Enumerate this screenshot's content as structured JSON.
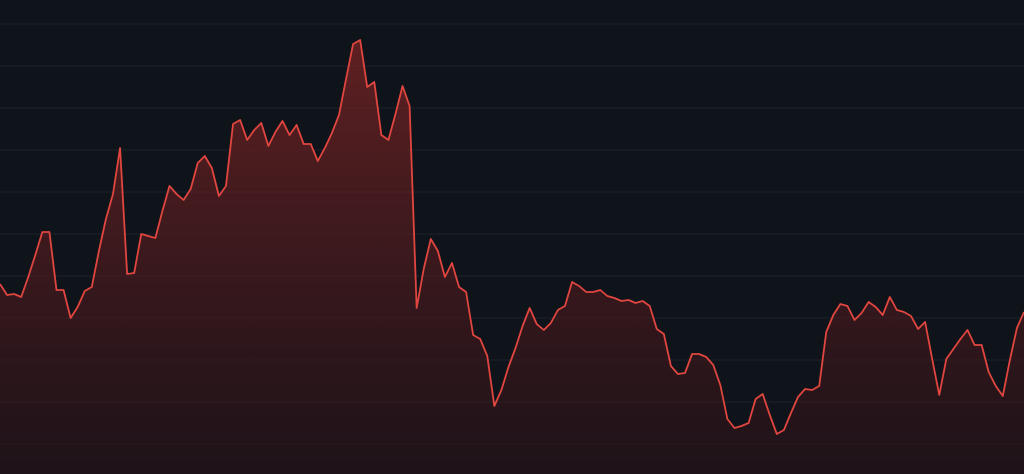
{
  "chart_data": {
    "type": "area",
    "title": "",
    "xlabel": "",
    "ylabel": "",
    "grid": true,
    "legend": "none",
    "ylim": [
      0,
      474
    ],
    "x": [
      0,
      1,
      2,
      3,
      4,
      5,
      6,
      7,
      8,
      9,
      10,
      11,
      12,
      13,
      14,
      15,
      16,
      17,
      18,
      19,
      20,
      21,
      22,
      23,
      24,
      25,
      26,
      27,
      28,
      29,
      30,
      31,
      32,
      33,
      34,
      35,
      36,
      37,
      38,
      39,
      40,
      41,
      42,
      43,
      44,
      45,
      46,
      47,
      48,
      49,
      50,
      51,
      52,
      53,
      54,
      55,
      56,
      57,
      58,
      59,
      60,
      61,
      62,
      63,
      64,
      65,
      66,
      67,
      68,
      69,
      70,
      71,
      72,
      73,
      74,
      75,
      76,
      77,
      78,
      79,
      80,
      81,
      82,
      83,
      84,
      85,
      86,
      87,
      88,
      89,
      90,
      91,
      92,
      93,
      94,
      95,
      96,
      97,
      98,
      99,
      100,
      101,
      102,
      103,
      104,
      105,
      106,
      107,
      108,
      109,
      110,
      111,
      112,
      113,
      114,
      115,
      116,
      117,
      118,
      119,
      120,
      121,
      122,
      123,
      124,
      125,
      126,
      127,
      128,
      129,
      130,
      131,
      132,
      133,
      134,
      135,
      136,
      137,
      138,
      139,
      140,
      141,
      142,
      143,
      144,
      145
    ],
    "series": [
      {
        "color": "#e0463f",
        "values": [
          190,
          179,
          180,
          177,
          197,
          219,
          242,
          242,
          184,
          184,
          156,
          167,
          183,
          187,
          223,
          255,
          280,
          326,
          200,
          201,
          240,
          238,
          236,
          263,
          288,
          280,
          274,
          285,
          311,
          318,
          306,
          278,
          288,
          350,
          354,
          334,
          344,
          351,
          328,
          342,
          353,
          339,
          349,
          330,
          330,
          313,
          326,
          341,
          359,
          395,
          430,
          434,
          387,
          392,
          339,
          334,
          360,
          388,
          368,
          166,
          205,
          235,
          223,
          197,
          211,
          187,
          182,
          139,
          135,
          118,
          68,
          84,
          107,
          126,
          148,
          166,
          150,
          144,
          151,
          164,
          168,
          192,
          188,
          182,
          182,
          184,
          178,
          176,
          173,
          174,
          171,
          173,
          168,
          145,
          140,
          108,
          100,
          101,
          120,
          120,
          117,
          109,
          89,
          55,
          46,
          48,
          51,
          75,
          80,
          59,
          40,
          44,
          61,
          77,
          85,
          84,
          88,
          142,
          159,
          170,
          168,
          154,
          161,
          172,
          167,
          159,
          177,
          164,
          162,
          158,
          145,
          152,
          115,
          79,
          115,
          125,
          135,
          144,
          129,
          129,
          102,
          88,
          78,
          114,
          146,
          162
        ]
      }
    ]
  }
}
